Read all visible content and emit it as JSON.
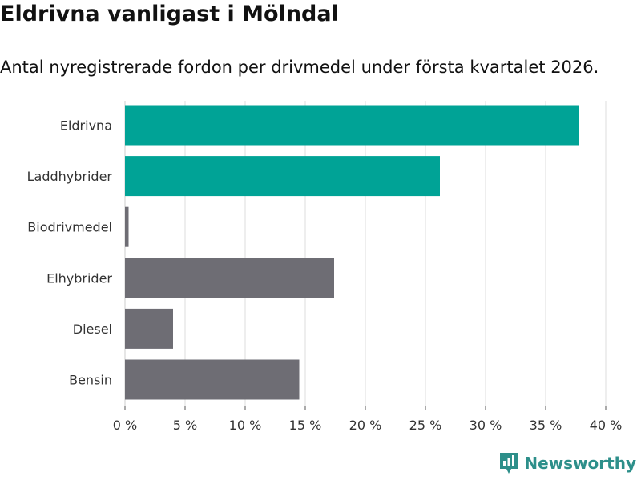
{
  "header": {
    "title": "Eldrivna vanligast i Mölndal",
    "subtitle": "Antal nyregistrerade fordon per drivmedel under första kvartalet 2026."
  },
  "chart_data": {
    "type": "bar",
    "orientation": "horizontal",
    "title": "Eldrivna vanligast i Mölndal",
    "subtitle": "Antal nyregistrerade fordon per drivmedel under första kvartalet 2026.",
    "categories": [
      "Eldrivna",
      "Laddhybrider",
      "Biodrivmedel",
      "Elhybrider",
      "Diesel",
      "Bensin"
    ],
    "values": [
      37.8,
      26.2,
      0.3,
      17.4,
      4.0,
      14.5
    ],
    "value_unit": "%",
    "bar_colors": [
      "#00a396",
      "#00a396",
      "#6e6d74",
      "#6e6d74",
      "#6e6d74",
      "#6e6d74"
    ],
    "xlabel": "",
    "ylabel": "",
    "xlim": [
      0,
      40
    ],
    "x_ticks": [
      0,
      5,
      10,
      15,
      20,
      25,
      30,
      35,
      40
    ],
    "x_tick_labels": [
      "0 %",
      "5 %",
      "10 %",
      "15 %",
      "20 %",
      "25 %",
      "30 %",
      "35 %",
      "40 %"
    ],
    "grid": true,
    "legend": "none"
  },
  "colors": {
    "highlight": "#00a396",
    "default": "#6e6d74",
    "grid": "#dddddd",
    "brand": "#2d8f8a"
  },
  "footer": {
    "brand_name": "Newsworthy",
    "brand_icon": "newsworthy-logo-icon"
  }
}
